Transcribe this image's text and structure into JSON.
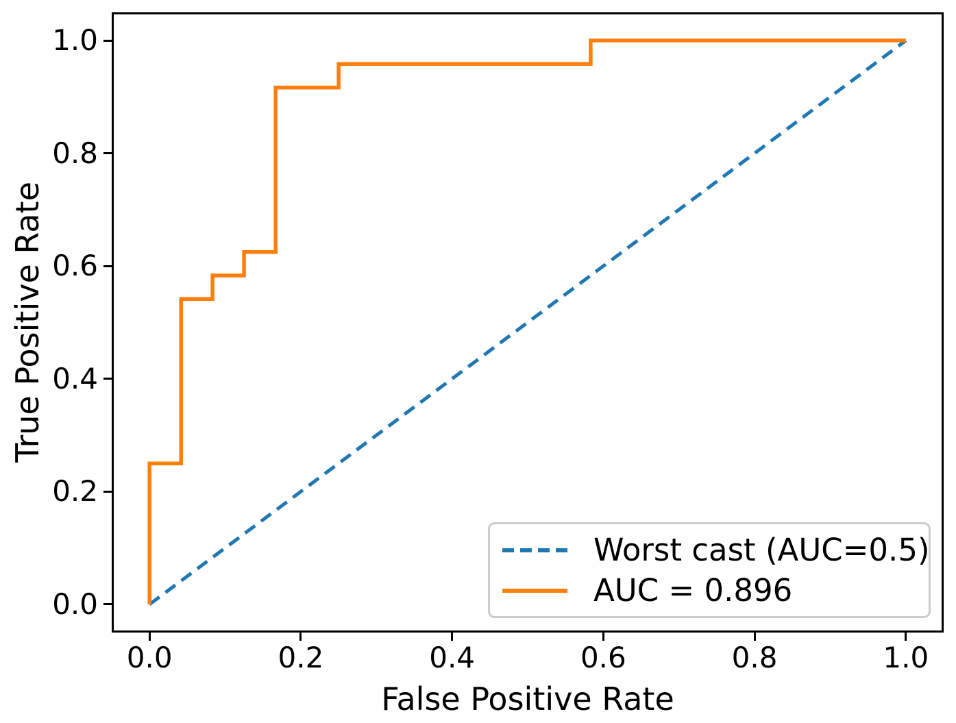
{
  "figure": {
    "xlabel": "False Positive Rate",
    "ylabel": "True Positive Rate",
    "x_tick_labels": [
      "0.0",
      "0.2",
      "0.4",
      "0.6",
      "0.8",
      "1.0"
    ],
    "y_tick_labels": [
      "0.0",
      "0.2",
      "0.4",
      "0.6",
      "0.8",
      "1.0"
    ],
    "spine_color": "#000000",
    "background_color": "#ffffff"
  },
  "legend": {
    "border_color": "#cccccc",
    "items": [
      {
        "label": "Worst cast (AUC=0.5)",
        "color": "#1f77b4",
        "line_style": "dashed"
      },
      {
        "label": "AUC = 0.896",
        "color": "#ff7f0e",
        "line_style": "solid"
      }
    ]
  },
  "chart_data": {
    "type": "line",
    "title": "",
    "xlabel": "False Positive Rate",
    "ylabel": "True Positive Rate",
    "xlim": [
      -0.05,
      1.05
    ],
    "ylim": [
      -0.05,
      1.05
    ],
    "x_ticks": [
      0.0,
      0.2,
      0.4,
      0.6,
      0.8,
      1.0
    ],
    "y_ticks": [
      0.0,
      0.2,
      0.4,
      0.6,
      0.8,
      1.0
    ],
    "grid": false,
    "legend_position": "lower right",
    "series": [
      {
        "name": "Worst cast (AUC=0.5)",
        "kind": "diagonal-reference",
        "style": "dashed",
        "color": "#1f77b4",
        "linewidth": 5,
        "auc": 0.5,
        "x": [
          0,
          1
        ],
        "y": [
          0,
          1
        ]
      },
      {
        "name": "AUC = 0.896",
        "kind": "roc-step-curve",
        "style": "solid",
        "color": "#ff7f0e",
        "linewidth": 5.5,
        "auc": 0.896,
        "x": [
          0,
          0,
          0.0417,
          0.0417,
          0.0833,
          0.0833,
          0.125,
          0.125,
          0.1667,
          0.1667,
          0.25,
          0.25,
          0.5833,
          0.5833,
          1.0
        ],
        "y": [
          0,
          0.25,
          0.25,
          0.5417,
          0.5417,
          0.5833,
          0.5833,
          0.625,
          0.625,
          0.9167,
          0.9167,
          0.9583,
          0.9583,
          1.0,
          1.0
        ]
      }
    ]
  }
}
